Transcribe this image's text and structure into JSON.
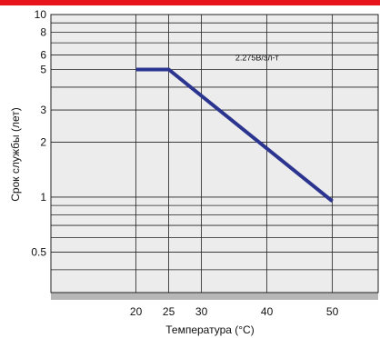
{
  "colors": {
    "top_bar": "#e8141c",
    "plot_bg": "#ececec",
    "grid": "#222222",
    "series": "#2b3590",
    "axis_band": "#b7b7b7"
  },
  "chart_data": {
    "type": "line",
    "y_scale": "log",
    "xlabel": "Температура (°C)",
    "ylabel": "Срок службы  (лет)",
    "xlim": [
      7,
      57
    ],
    "ylim": [
      0.3,
      10
    ],
    "x_ticks": [
      20,
      25,
      30,
      40,
      50
    ],
    "x_tick_labels": [
      "20",
      "25",
      "30",
      "40",
      "50"
    ],
    "y_ticks": [
      0.5,
      1,
      2,
      3,
      5,
      6,
      8,
      10
    ],
    "y_tick_labels": [
      "0.5",
      "1",
      "2",
      "3",
      "5",
      "6",
      "8",
      "10"
    ],
    "y_gridlines": [
      0.4,
      0.5,
      0.6,
      0.7,
      0.8,
      0.9,
      1,
      2,
      3,
      4,
      5,
      6,
      7,
      8,
      9,
      10
    ],
    "grid": true,
    "series": [
      {
        "x": [
          20,
          25,
          50
        ],
        "y": [
          5,
          5,
          0.95
        ]
      }
    ],
    "annotations": [
      {
        "text": "2.275В/эл-т",
        "x": 38.5,
        "y": 5.6
      }
    ]
  }
}
